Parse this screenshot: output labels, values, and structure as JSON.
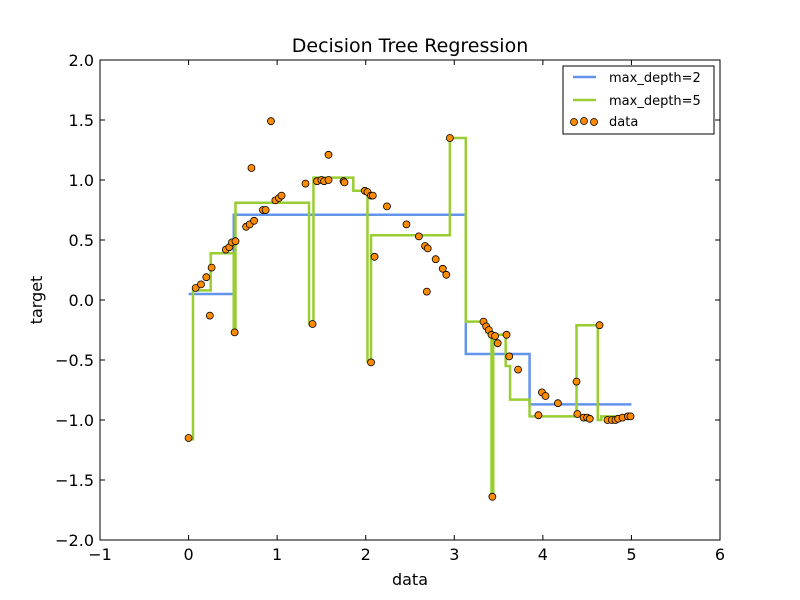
{
  "chart_data": {
    "type": "scatter",
    "title": "Decision Tree Regression",
    "xlabel": "data",
    "ylabel": "target",
    "xlim": [
      -1,
      6
    ],
    "ylim": [
      -2.0,
      2.0
    ],
    "xticks": [
      -1,
      0,
      1,
      2,
      3,
      4,
      5,
      6
    ],
    "xtick_labels": [
      "−1",
      "0",
      "1",
      "2",
      "3",
      "4",
      "5",
      "6"
    ],
    "yticks": [
      -2.0,
      -1.5,
      -1.0,
      -0.5,
      0.0,
      0.5,
      1.0,
      1.5,
      2.0
    ],
    "ytick_labels": [
      "−2.0",
      "−1.5",
      "−1.0",
      "−0.5",
      "0.0",
      "0.5",
      "1.0",
      "1.5",
      "2.0"
    ],
    "grid": false,
    "legend_placement": "top-right",
    "series": [
      {
        "name": "max_depth=2",
        "kind": "step-line",
        "color": "#6495ED",
        "x": [
          0.0,
          0.51,
          0.51,
          3.13,
          3.13,
          3.85,
          3.85,
          5.0
        ],
        "y": [
          0.05,
          0.05,
          0.71,
          0.71,
          -0.45,
          -0.45,
          -0.87,
          -0.87
        ]
      },
      {
        "name": "max_depth=5",
        "kind": "step-line",
        "color": "#9ACD32",
        "x": [
          0.0,
          0.05,
          0.05,
          0.25,
          0.25,
          0.51,
          0.51,
          0.53,
          0.53,
          1.36,
          1.36,
          1.41,
          1.41,
          1.86,
          1.86,
          2.02,
          2.02,
          2.06,
          2.06,
          2.95,
          2.95,
          3.13,
          3.13,
          3.36,
          3.36,
          3.42,
          3.42,
          3.44,
          3.44,
          3.58,
          3.58,
          3.63,
          3.63,
          3.85,
          3.85,
          4.38,
          4.38,
          4.62,
          4.62,
          4.66,
          4.66,
          4.95,
          4.95,
          5.0
        ],
        "y": [
          -1.16,
          -1.16,
          0.08,
          0.08,
          0.39,
          0.39,
          -0.27,
          -0.27,
          0.81,
          0.81,
          -0.2,
          -0.2,
          1.02,
          1.02,
          0.91,
          0.91,
          -0.51,
          -0.51,
          0.54,
          0.54,
          1.35,
          1.35,
          -0.18,
          -0.18,
          -0.27,
          -0.27,
          -1.63,
          -1.63,
          -0.29,
          -0.29,
          -0.55,
          -0.55,
          -0.83,
          -0.83,
          -0.97,
          -0.97,
          -0.21,
          -0.21,
          -1.0,
          -1.0,
          -0.97,
          -0.97,
          -0.97,
          -0.97
        ]
      },
      {
        "name": "data",
        "kind": "scatter",
        "color": "#FF8C00",
        "edge": "#000000",
        "points": [
          [
            0.0,
            -1.15
          ],
          [
            0.08,
            0.1
          ],
          [
            0.14,
            0.13
          ],
          [
            0.2,
            0.19
          ],
          [
            0.24,
            -0.13
          ],
          [
            0.26,
            0.27
          ],
          [
            0.42,
            0.42
          ],
          [
            0.46,
            0.44
          ],
          [
            0.49,
            0.48
          ],
          [
            0.52,
            -0.27
          ],
          [
            0.53,
            0.49
          ],
          [
            0.65,
            0.61
          ],
          [
            0.69,
            0.63
          ],
          [
            0.71,
            1.1
          ],
          [
            0.74,
            0.66
          ],
          [
            0.84,
            0.75
          ],
          [
            0.87,
            0.75
          ],
          [
            0.93,
            1.49
          ],
          [
            0.98,
            0.83
          ],
          [
            1.02,
            0.85
          ],
          [
            1.05,
            0.87
          ],
          [
            1.32,
            0.97
          ],
          [
            1.4,
            -0.2
          ],
          [
            1.45,
            0.99
          ],
          [
            1.5,
            1.0
          ],
          [
            1.53,
            0.99
          ],
          [
            1.58,
            1.0
          ],
          [
            1.58,
            1.21
          ],
          [
            1.75,
            0.99
          ],
          [
            1.76,
            0.98
          ],
          [
            1.99,
            0.91
          ],
          [
            2.02,
            0.9
          ],
          [
            2.06,
            0.87
          ],
          [
            2.08,
            0.87
          ],
          [
            2.06,
            -0.52
          ],
          [
            2.1,
            0.36
          ],
          [
            2.24,
            0.78
          ],
          [
            2.46,
            0.63
          ],
          [
            2.6,
            0.53
          ],
          [
            2.67,
            0.45
          ],
          [
            2.7,
            0.43
          ],
          [
            2.69,
            0.07
          ],
          [
            2.79,
            0.34
          ],
          [
            2.87,
            0.26
          ],
          [
            2.91,
            0.21
          ],
          [
            2.95,
            1.35
          ],
          [
            3.33,
            -0.18
          ],
          [
            3.36,
            -0.22
          ],
          [
            3.39,
            -0.25
          ],
          [
            3.42,
            -0.29
          ],
          [
            3.43,
            -1.64
          ],
          [
            3.46,
            -0.3
          ],
          [
            3.49,
            -0.36
          ],
          [
            3.59,
            -0.29
          ],
          [
            3.62,
            -0.47
          ],
          [
            3.72,
            -0.58
          ],
          [
            3.95,
            -0.96
          ],
          [
            3.99,
            -0.77
          ],
          [
            4.03,
            -0.8
          ],
          [
            4.17,
            -0.86
          ],
          [
            4.38,
            -0.68
          ],
          [
            4.39,
            -0.95
          ],
          [
            4.46,
            -0.98
          ],
          [
            4.5,
            -0.98
          ],
          [
            4.53,
            -0.99
          ],
          [
            4.64,
            -0.21
          ],
          [
            4.73,
            -1.0
          ],
          [
            4.78,
            -1.0
          ],
          [
            4.82,
            -1.0
          ],
          [
            4.85,
            -0.99
          ],
          [
            4.9,
            -0.98
          ],
          [
            4.96,
            -0.97
          ],
          [
            4.99,
            -0.97
          ]
        ]
      }
    ]
  }
}
